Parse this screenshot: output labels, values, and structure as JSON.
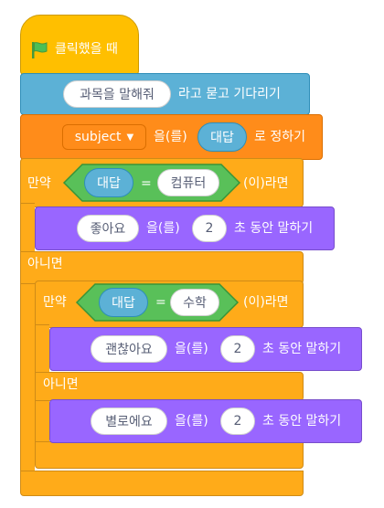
{
  "hat": {
    "label": "클릭했을 때",
    "icon": "green-flag-icon"
  },
  "ask_block": {
    "question": "과목을 말해줘",
    "suffix": "라고 묻고 기다리기"
  },
  "set_block": {
    "variable": "subject",
    "middle": "을(를)",
    "value": "대답",
    "suffix": "로 정하기"
  },
  "if_outer": {
    "if_label": "만약",
    "condition": {
      "left": "대답",
      "op": "=",
      "right": "컴퓨터"
    },
    "then_label": "(이)라면",
    "else_label": "아니면",
    "say_then": {
      "message": "좋아요",
      "middle": "을(를)",
      "seconds": "2",
      "suffix": "초 동안 말하기"
    }
  },
  "if_inner": {
    "if_label": "만약",
    "condition": {
      "left": "대답",
      "op": "=",
      "right": "수학"
    },
    "then_label": "(이)라면",
    "else_label": "아니면",
    "say_then": {
      "message": "괜찮아요",
      "middle": "을(를)",
      "seconds": "2",
      "suffix": "초 동안 말하기"
    },
    "say_else": {
      "message": "별로에요",
      "middle": "을(를)",
      "seconds": "2",
      "suffix": "초 동안 말하기"
    }
  },
  "colors": {
    "events": "#FFBF00",
    "sensing": "#5CB1D6",
    "variables": "#FF8C1A",
    "control": "#FFAB19",
    "looks": "#9966FF",
    "operators": "#59C059"
  }
}
